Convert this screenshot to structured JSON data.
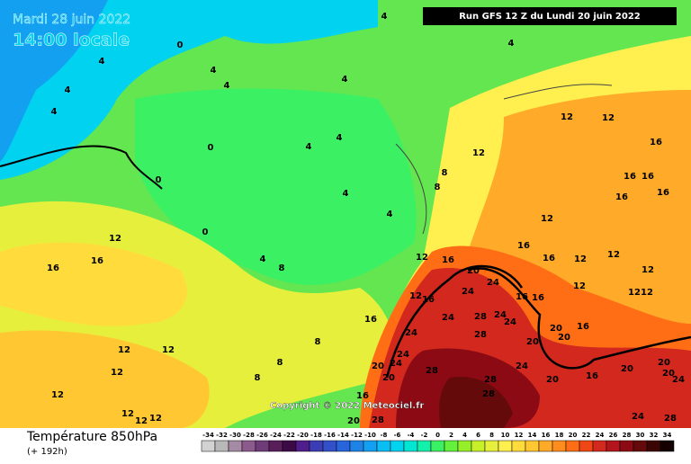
{
  "header": {
    "date": "Mardi 28 juin 2022",
    "time": "14:00 locale",
    "run": "Run GFS 12 Z du Lundi 20 juin 2022"
  },
  "copyright": "Copyright © 2022 Meteociel.fr",
  "footer": {
    "title": "Température 850hPa",
    "lead": "(+ 192h)"
  },
  "scale": {
    "values": [
      -34,
      -32,
      -30,
      -28,
      -26,
      -24,
      -22,
      -20,
      -18,
      -16,
      -14,
      -12,
      -10,
      -8,
      -6,
      -4,
      -2,
      0,
      2,
      4,
      6,
      8,
      10,
      12,
      14,
      16,
      18,
      20,
      22,
      24,
      26,
      28,
      30,
      32,
      34
    ],
    "colors": [
      "#d2d2d2",
      "#b9b9b9",
      "#a48aa4",
      "#8c5a8c",
      "#6e3c78",
      "#5a1e5a",
      "#3c0a46",
      "#501e8c",
      "#3c3cb4",
      "#3250c8",
      "#2864dc",
      "#1e82e6",
      "#14a0f0",
      "#0abef5",
      "#00d2f0",
      "#00e6d2",
      "#14f0aa",
      "#3cf064",
      "#64f03c",
      "#96f028",
      "#c8f028",
      "#e6f03c",
      "#fff050",
      "#ffdc3c",
      "#ffc832",
      "#ffaa28",
      "#ff8c1e",
      "#ff6e14",
      "#f04614",
      "#d2281e",
      "#b4141e",
      "#8c0a14",
      "#640a0a",
      "#3c0505",
      "#140000"
    ]
  },
  "contour_labels": [
    0,
    4,
    4,
    4,
    4,
    4,
    4,
    4,
    4,
    0,
    0,
    4,
    4,
    4,
    4,
    4,
    8,
    0,
    8,
    8,
    12,
    12,
    12,
    16,
    16,
    16,
    16,
    16,
    12,
    12,
    16,
    16,
    12,
    16,
    16,
    16,
    20,
    24,
    24,
    12,
    16,
    16,
    24,
    24,
    28,
    24,
    24,
    28,
    20,
    20,
    20,
    24,
    20,
    24,
    28,
    28,
    28,
    24,
    20,
    16,
    20,
    16,
    20,
    20,
    20,
    24,
    24,
    28,
    12,
    12,
    12,
    12,
    12,
    12,
    12,
    8,
    8,
    8,
    28,
    20,
    12,
    12,
    12,
    12,
    12,
    12,
    16,
    16,
    16
  ]
}
